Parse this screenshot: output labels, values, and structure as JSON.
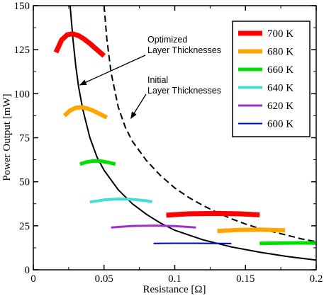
{
  "chart_data": {
    "type": "line",
    "title": "",
    "xlabel": "Resistance [Ω]",
    "ylabel": "Power Output [mW]",
    "xlim": [
      0,
      0.2
    ],
    "ylim": [
      0,
      150
    ],
    "xticks": [
      {
        "value": 0,
        "label": "0"
      },
      {
        "value": 0.05,
        "label": "0.05"
      },
      {
        "value": 0.1,
        "label": "0.1"
      },
      {
        "value": 0.15,
        "label": "0.15"
      },
      {
        "value": 0.2,
        "label": "0.2"
      }
    ],
    "yticks": [
      {
        "value": 0,
        "label": "0"
      },
      {
        "value": 25,
        "label": "25"
      },
      {
        "value": 50,
        "label": "50"
      },
      {
        "value": 75,
        "label": "75"
      },
      {
        "value": 100,
        "label": "100"
      },
      {
        "value": 125,
        "label": "125"
      },
      {
        "value": 150,
        "label": "150"
      }
    ],
    "grid": false,
    "legend_position": "top-right",
    "series": [
      {
        "name": "700 K",
        "color": "#ff0000",
        "segments": [
          {
            "x": [
              0.016,
              0.02,
              0.024,
              0.028,
              0.032,
              0.036,
              0.04,
              0.045,
              0.05
            ],
            "y": [
              123.5,
              130.5,
              133.5,
              134,
              133,
              131,
              128.5,
              125,
              121.5
            ]
          },
          {
            "x": [
              0.094,
              0.11,
              0.13,
              0.145,
              0.16
            ],
            "y": [
              31,
              31.8,
              32,
              31.8,
              31.2
            ]
          }
        ]
      },
      {
        "name": "680 K",
        "color": "#ffa500",
        "segments": [
          {
            "x": [
              0.022,
              0.026,
              0.03,
              0.034,
              0.038,
              0.042,
              0.047,
              0.052
            ],
            "y": [
              87.5,
              90.5,
              92,
              92.3,
              91.7,
              90.5,
              88.5,
              86.5
            ]
          },
          {
            "x": [
              0.13,
              0.145,
              0.16,
              0.178
            ],
            "y": [
              22,
              22.6,
              22.8,
              22.4
            ]
          }
        ]
      },
      {
        "name": "660 K",
        "color": "#00e000",
        "segments": [
          {
            "x": [
              0.033,
              0.038,
              0.043,
              0.048,
              0.053,
              0.058
            ],
            "y": [
              60,
              61.3,
              61.8,
              61.7,
              61,
              60
            ]
          },
          {
            "x": [
              0.16,
              0.175,
              0.19,
              0.2
            ],
            "y": [
              15,
              15.2,
              15.3,
              15.2
            ]
          }
        ]
      },
      {
        "name": "640 K",
        "color": "#40e0d0",
        "segments": [
          {
            "x": [
              0.04,
              0.05,
              0.06,
              0.07,
              0.08,
              0.084
            ],
            "y": [
              38.5,
              39.7,
              40.2,
              40,
              39.2,
              38.6
            ]
          }
        ]
      },
      {
        "name": "620 K",
        "color": "#9932cc",
        "segments": [
          {
            "x": [
              0.055,
              0.07,
              0.085,
              0.1,
              0.115
            ],
            "y": [
              24,
              24.9,
              25.1,
              24.8,
              24
            ]
          }
        ]
      },
      {
        "name": "600 K",
        "color": "#0000cd",
        "segments": [
          {
            "x": [
              0.085,
              0.1,
              0.115,
              0.13,
              0.14
            ],
            "y": [
              15,
              15.1,
              15.1,
              15,
              14.9
            ]
          }
        ]
      }
    ],
    "reference_curves": [
      {
        "id": "optimized",
        "style": "solid",
        "color": "#000000",
        "x": [
          0.026,
          0.028,
          0.03,
          0.032,
          0.035,
          0.04,
          0.045,
          0.05,
          0.06,
          0.07,
          0.08,
          0.09,
          0.1,
          0.12,
          0.14,
          0.16,
          0.18,
          0.2
        ],
        "y": [
          150,
          131,
          116,
          104,
          91,
          75,
          64,
          56.5,
          45.5,
          37.5,
          31.5,
          26.5,
          22.5,
          17,
          13,
          10,
          7.5,
          5.5
        ]
      },
      {
        "id": "initial",
        "style": "dashed",
        "color": "#000000",
        "x": [
          0.05,
          0.052,
          0.055,
          0.06,
          0.065,
          0.07,
          0.08,
          0.09,
          0.1,
          0.11,
          0.12,
          0.13,
          0.14,
          0.15,
          0.16,
          0.17,
          0.18,
          0.19,
          0.2
        ],
        "y": [
          150,
          131,
          112,
          92.5,
          81,
          73,
          62,
          53.5,
          46.5,
          41,
          36.5,
          32.5,
          29,
          26,
          23.5,
          21.5,
          19.5,
          17.5,
          16
        ]
      }
    ],
    "annotations": [
      {
        "id": "optimized",
        "lines": [
          "Optimized",
          "Layer Thicknesses"
        ],
        "arrow_to": [
          0.033,
          105
        ]
      },
      {
        "id": "initial",
        "lines": [
          "Initial",
          "Layer Thicknesses"
        ],
        "arrow_to": [
          0.069,
          86
        ]
      }
    ]
  }
}
